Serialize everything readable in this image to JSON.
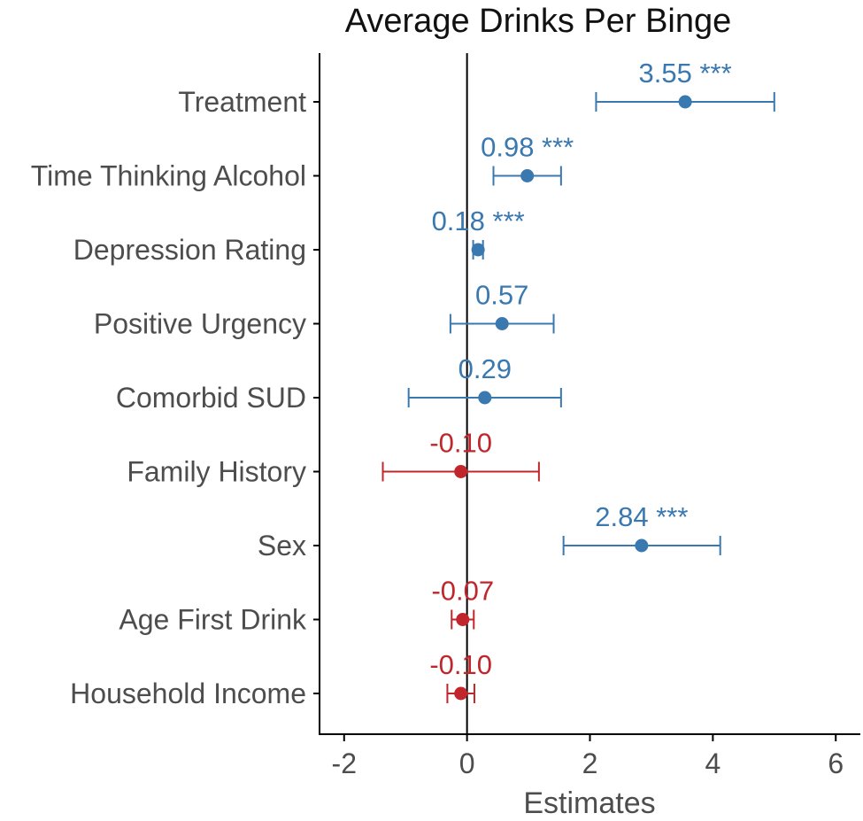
{
  "chart_data": {
    "type": "scatter",
    "subtype": "forest-plot",
    "title": "Average Drinks Per Binge",
    "xlabel": "Estimates",
    "ylabel": "",
    "xlim": [
      -2.4,
      6.4
    ],
    "xticks": [
      -2,
      0,
      2,
      4,
      6
    ],
    "xtick_labels": [
      "-2",
      "0",
      "2",
      "4",
      "6"
    ],
    "reference_line": 0,
    "grid": false,
    "colors": {
      "positive": "#3a78b0",
      "negative": "#c0262b",
      "axis": "#000000"
    },
    "series": [
      {
        "label": "Treatment",
        "estimate": 3.55,
        "ci_low": 2.1,
        "ci_high": 5.0,
        "value_label": "3.55 ***",
        "sign": "positive"
      },
      {
        "label": "Time Thinking Alcohol",
        "estimate": 0.98,
        "ci_low": 0.43,
        "ci_high": 1.53,
        "value_label": "0.98 ***",
        "sign": "positive"
      },
      {
        "label": "Depression Rating",
        "estimate": 0.18,
        "ci_low": 0.1,
        "ci_high": 0.26,
        "value_label": "0.18 ***",
        "sign": "positive"
      },
      {
        "label": "Positive Urgency",
        "estimate": 0.57,
        "ci_low": -0.27,
        "ci_high": 1.41,
        "value_label": "0.57",
        "sign": "positive"
      },
      {
        "label": "Comorbid SUD",
        "estimate": 0.29,
        "ci_low": -0.95,
        "ci_high": 1.53,
        "value_label": "0.29",
        "sign": "positive"
      },
      {
        "label": "Family History",
        "estimate": -0.1,
        "ci_low": -1.37,
        "ci_high": 1.17,
        "value_label": "-0.10",
        "sign": "negative"
      },
      {
        "label": "Sex",
        "estimate": 2.84,
        "ci_low": 1.57,
        "ci_high": 4.12,
        "value_label": "2.84 ***",
        "sign": "positive"
      },
      {
        "label": "Age First Drink",
        "estimate": -0.07,
        "ci_low": -0.25,
        "ci_high": 0.11,
        "value_label": "-0.07",
        "sign": "negative"
      },
      {
        "label": "Household Income",
        "estimate": -0.1,
        "ci_low": -0.32,
        "ci_high": 0.12,
        "value_label": "-0.10",
        "sign": "negative"
      }
    ]
  }
}
